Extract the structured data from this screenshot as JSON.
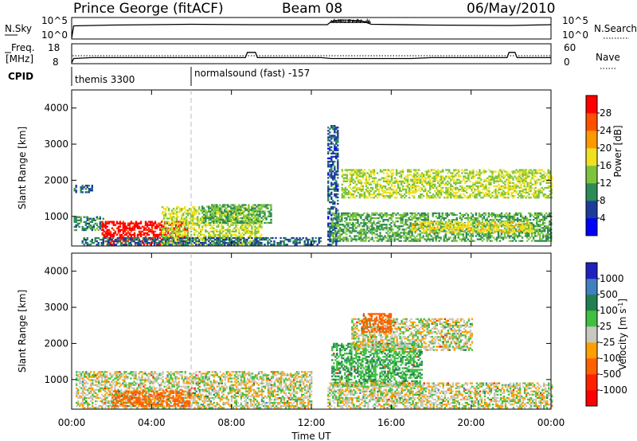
{
  "header": {
    "station": "Prince George (fitACF)",
    "beam": "Beam 08",
    "date": "06/May/2010"
  },
  "top_panels": {
    "nsky_label": "N.Sky",
    "nsky_ticks": [
      "10^5",
      "10^0"
    ],
    "nsearch_label": "N.Search",
    "nsearch_ticks": [
      "10^5",
      "10^0"
    ],
    "freq_label": "Freq.",
    "freq_unit": "[MHz]",
    "freq_ticks": [
      "18",
      "8"
    ],
    "nave_label": "Nave",
    "nave_ticks": [
      "60",
      "0"
    ],
    "cpid_label": "CPID",
    "cpid_segments": [
      {
        "name": "themis 3300",
        "start_hr": 0,
        "end_hr": 6
      },
      {
        "name": "normalsound (fast) -157",
        "start_hr": 6,
        "end_hr": 24
      }
    ]
  },
  "x_axis": {
    "label": "Time UT",
    "ticks": [
      "00:00",
      "04:00",
      "08:00",
      "12:00",
      "16:00",
      "20:00",
      "00:00"
    ],
    "range_hr": [
      0,
      24
    ]
  },
  "power_panel": {
    "ylabel": "Slant Range [km]",
    "yticks": [
      "1000",
      "2000",
      "3000",
      "4000"
    ],
    "cbar_label": "Power [dB]",
    "cbar_ticks": [
      "4",
      "8",
      "12",
      "16",
      "20",
      "24",
      "28"
    ],
    "cbar_colors": [
      "#0000ff",
      "#1c3c9c",
      "#2e8b57",
      "#7cc43c",
      "#f0e020",
      "#ff9900",
      "#ff5000",
      "#ff0000"
    ]
  },
  "velocity_panel": {
    "ylabel": "Slant Range [km]",
    "yticks": [
      "1000",
      "2000",
      "3000",
      "4000"
    ],
    "cbar_label": "Velocity [m s",
    "cbar_label_sup": "-1",
    "cbar_label_end": "]",
    "cbar_ticks": [
      "1000",
      "500",
      "100",
      "25",
      "-25",
      "-100",
      "-500",
      "-1000"
    ],
    "cbar_colors": [
      "#2020c0",
      "#4080c0",
      "#208050",
      "#40c040",
      "#c8c8c0",
      "#ffa000",
      "#ff6000",
      "#ff2000",
      "#ff0000"
    ]
  },
  "chart_data": {
    "type": "heatmap",
    "x_unit": "hours UT",
    "xlim": [
      0,
      24
    ],
    "ylim_km": [
      180,
      4500
    ],
    "nsky_trace_hr": [
      0,
      0.1,
      2,
      6,
      9,
      12.8,
      13,
      13.5,
      14.5,
      15,
      18,
      22,
      24
    ],
    "nsky_trace_log": [
      0,
      3.1,
      3.3,
      3.5,
      3.4,
      3.4,
      4.2,
      4.6,
      4.4,
      3.5,
      3.3,
      3.2,
      3.4
    ],
    "freq_trace_hr": [
      0,
      0.1,
      1,
      8.7,
      8.8,
      9.2,
      9.3,
      12.5,
      13,
      14,
      17,
      18,
      21.8,
      21.9,
      22.2,
      22.3,
      24
    ],
    "freq_trace_mhz": [
      8,
      10.5,
      11,
      11,
      14,
      14,
      11,
      11,
      10.5,
      10.5,
      10.5,
      11,
      11,
      14,
      14,
      11,
      11
    ],
    "power_regions": [
      {
        "t0": 0.1,
        "t1": 1.6,
        "r0": 600,
        "r1": 1000,
        "db": 8
      },
      {
        "t0": 0.1,
        "t1": 1.0,
        "r0": 1650,
        "r1": 1850,
        "db": 6
      },
      {
        "t0": 1.5,
        "t1": 5.8,
        "r0": 200,
        "r1": 850,
        "db": 28
      },
      {
        "t0": 4.5,
        "t1": 9.5,
        "r0": 200,
        "r1": 1250,
        "db": 14
      },
      {
        "t0": 6.5,
        "t1": 10.0,
        "r0": 800,
        "r1": 1300,
        "db": 10
      },
      {
        "t0": 0.5,
        "t1": 12.5,
        "r0": 200,
        "r1": 400,
        "db": 6
      },
      {
        "t0": 12.8,
        "t1": 13.3,
        "r0": 200,
        "r1": 3500,
        "db": 5
      },
      {
        "t0": 13.5,
        "t1": 24,
        "r0": 1500,
        "r1": 2300,
        "db": 14
      },
      {
        "t0": 13.0,
        "t1": 24,
        "r0": 300,
        "r1": 1100,
        "db": 10
      },
      {
        "t0": 17.0,
        "t1": 23.0,
        "r0": 550,
        "r1": 850,
        "db": 16
      }
    ],
    "velocity_regions": [
      {
        "t0": 0.2,
        "t1": 12.0,
        "r0": 200,
        "r1": 1200,
        "v": 0
      },
      {
        "t0": 2.0,
        "t1": 6.0,
        "r0": 250,
        "r1": 700,
        "v": -150
      },
      {
        "t0": 13.0,
        "t1": 17.5,
        "r0": 800,
        "r1": 2000,
        "v": 80
      },
      {
        "t0": 14.0,
        "t1": 20.0,
        "r0": 1800,
        "r1": 2700,
        "v": 0
      },
      {
        "t0": 14.5,
        "t1": 16.0,
        "r0": 2300,
        "r1": 2800,
        "v": -200
      },
      {
        "t0": 12.8,
        "t1": 24,
        "r0": 200,
        "r1": 900,
        "v": 0
      }
    ]
  }
}
